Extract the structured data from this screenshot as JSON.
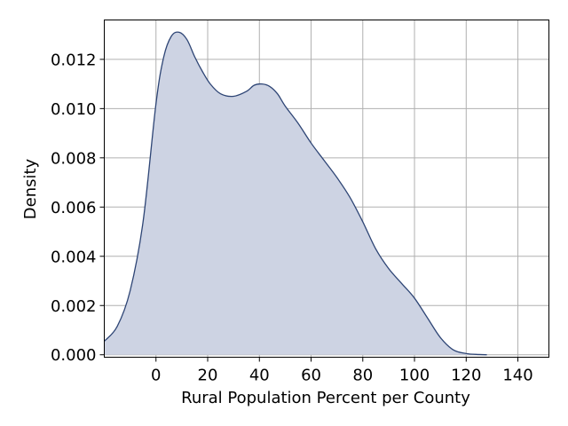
{
  "chart_data": {
    "type": "area",
    "title": "",
    "xlabel": "Rural Population Percent per County",
    "ylabel": "Density",
    "xlim": [
      -20,
      152
    ],
    "ylim": [
      -0.0001,
      0.0136
    ],
    "xticks": [
      0,
      20,
      40,
      60,
      80,
      100,
      120,
      140
    ],
    "yticks": [
      0.0,
      0.002,
      0.004,
      0.006,
      0.008,
      0.01,
      0.012
    ],
    "ytick_labels": [
      "0.000",
      "0.002",
      "0.004",
      "0.006",
      "0.008",
      "0.010",
      "0.012"
    ],
    "grid": true,
    "fill_color": "#cdd3e3",
    "line_color": "#2e4575",
    "series": [
      {
        "x": [
          -20,
          -15,
          -10,
          -5,
          0,
          3,
          6,
          9,
          12,
          15,
          18,
          21,
          25,
          30,
          35,
          38,
          41,
          44,
          47,
          50,
          55,
          60,
          65,
          70,
          75,
          80,
          85,
          90,
          95,
          100,
          105,
          110,
          115,
          120,
          125,
          128
        ],
        "y": [
          0.00055,
          0.00115,
          0.0026,
          0.0054,
          0.0102,
          0.0121,
          0.01295,
          0.0131,
          0.0128,
          0.0121,
          0.0115,
          0.011,
          0.0106,
          0.0105,
          0.0107,
          0.01095,
          0.011,
          0.0109,
          0.0106,
          0.0101,
          0.0094,
          0.0086,
          0.0079,
          0.0072,
          0.0064,
          0.0054,
          0.0043,
          0.0035,
          0.0029,
          0.0023,
          0.0015,
          0.0007,
          0.0002,
          5e-05,
          1e-05,
          0.0
        ]
      }
    ]
  }
}
